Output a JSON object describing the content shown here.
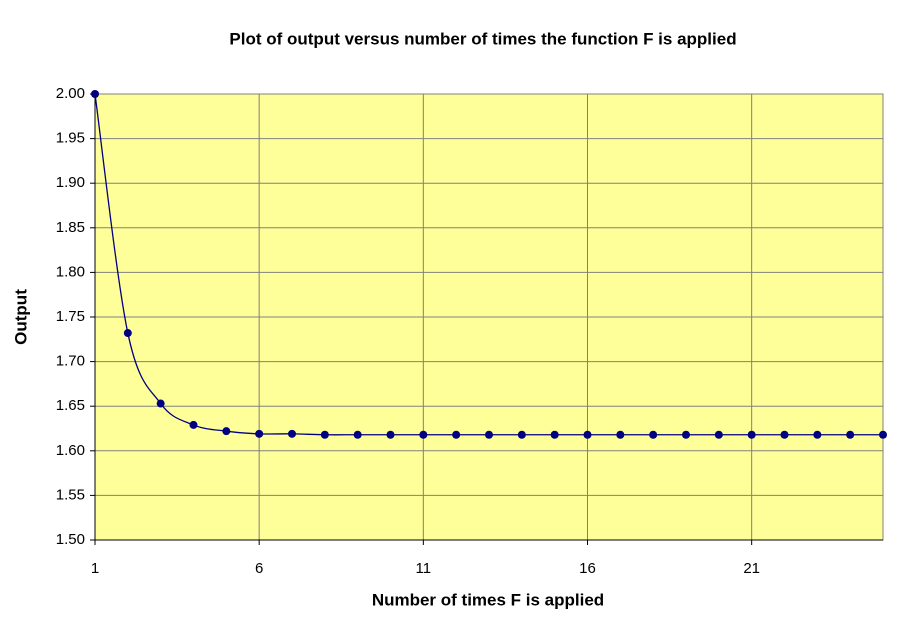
{
  "chart_data": {
    "type": "line",
    "title": "Plot of output versus number of times the function F is applied",
    "x_label": "Number of times F is applied",
    "y_label": "Output",
    "x": [
      1,
      2,
      3,
      4,
      5,
      6,
      7,
      8,
      9,
      10,
      11,
      12,
      13,
      14,
      15,
      16,
      17,
      18,
      19,
      20,
      21,
      22,
      23,
      24,
      25
    ],
    "values": [
      2,
      1.732,
      1.653,
      1.629,
      1.622,
      1.619,
      1.619,
      1.618,
      1.618,
      1.618,
      1.618,
      1.618,
      1.618,
      1.618,
      1.618,
      1.618,
      1.618,
      1.618,
      1.618,
      1.618,
      1.618,
      1.618,
      1.618,
      1.618,
      1.618
    ],
    "color": "#000080",
    "smooth": true,
    "xlim": [
      1,
      25
    ],
    "xticks": [
      1,
      6,
      11,
      16,
      21
    ],
    "ylim": [
      1.5,
      2
    ],
    "yticks": [
      {
        "value": 1.5,
        "label": "1.50"
      },
      1.55,
      {
        "value": 1.6,
        "label": "1.60"
      },
      1.65,
      {
        "value": 1.7,
        "label": "1.70"
      },
      1.75,
      {
        "value": 1.8,
        "label": "1.80"
      },
      1.85,
      {
        "value": 1.9,
        "label": "1.90"
      },
      1.95,
      {
        "value": 2,
        "label": "2.00"
      }
    ],
    "grid": true
  }
}
